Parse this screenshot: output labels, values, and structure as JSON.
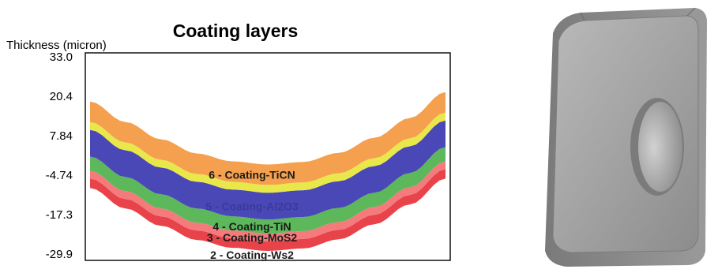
{
  "chart_data": {
    "type": "area",
    "title": "Coating layers",
    "ylabel": "Thickness (micron)",
    "xlabel": "",
    "yticks": [
      "33.0",
      "20.4",
      "7.84",
      "-4.74",
      "-17.3",
      "-29.9"
    ],
    "ylim": [
      -33.0,
      33.0
    ],
    "grid": false,
    "series": [
      {
        "name": "2 - Coating-Ws2",
        "label": "2 - Coating-Ws2",
        "color": "#e8434a",
        "thickness": 3.0
      },
      {
        "name": "3 - Coating-MoS2",
        "label": "3 - Coating-MoS2",
        "color": "#f47a7c",
        "thickness": 2.5
      },
      {
        "name": "4 - Coating-TiN",
        "label": "4 - Coating-TiN",
        "color": "#5cb85a",
        "thickness": 4.5
      },
      {
        "name": "5 - Coating-Al2O3",
        "label": "5 - Coating-Al2O3",
        "color": "#4a48b6",
        "thickness": 8.5
      },
      {
        "name": "5b",
        "label": "",
        "color": "#e8e84a",
        "thickness": 2.5
      },
      {
        "name": "6 - Coating-TiCN",
        "label": "6 - Coating-TiCN",
        "color": "#f4a04e",
        "thickness": 6.5
      }
    ],
    "base_curve": {
      "x": [
        0,
        0.1,
        0.2,
        0.3,
        0.4,
        0.5,
        0.6,
        0.7,
        0.8,
        0.9,
        1.0
      ],
      "y": [
        -10.0,
        -16.5,
        -22.0,
        -26.5,
        -29.0,
        -30.0,
        -29.2,
        -26.3,
        -21.5,
        -15.2,
        -7.0
      ]
    }
  },
  "insert_image": {
    "description_icon": "cutting-insert-icon"
  }
}
